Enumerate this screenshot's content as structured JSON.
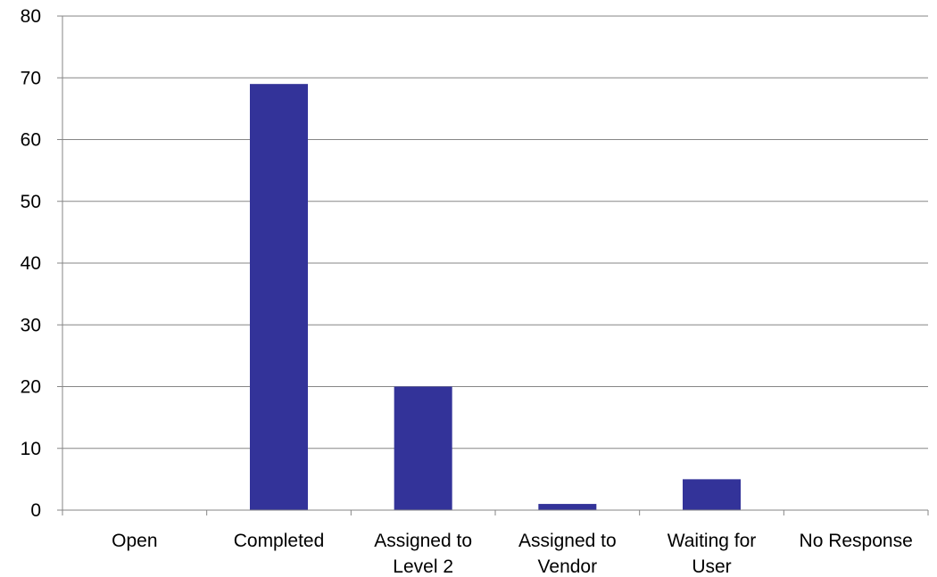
{
  "chart_data": {
    "type": "bar",
    "categories": [
      [
        "Open"
      ],
      [
        "Completed"
      ],
      [
        "Assigned to",
        "Level 2"
      ],
      [
        "Assigned to",
        "Vendor"
      ],
      [
        "Waiting for",
        "User"
      ],
      [
        "No Response"
      ]
    ],
    "values": [
      0,
      69,
      20,
      1,
      5,
      0
    ],
    "ylim": [
      0,
      80
    ],
    "yticks": [
      "0",
      "10",
      "20",
      "30",
      "40",
      "50",
      "60",
      "70",
      "80"
    ],
    "grid": true,
    "legend": "none",
    "title": "",
    "xlabel": "",
    "ylabel": "",
    "colors": {
      "bar": "#333399",
      "grid": "#868686",
      "axis": "#868686"
    }
  }
}
